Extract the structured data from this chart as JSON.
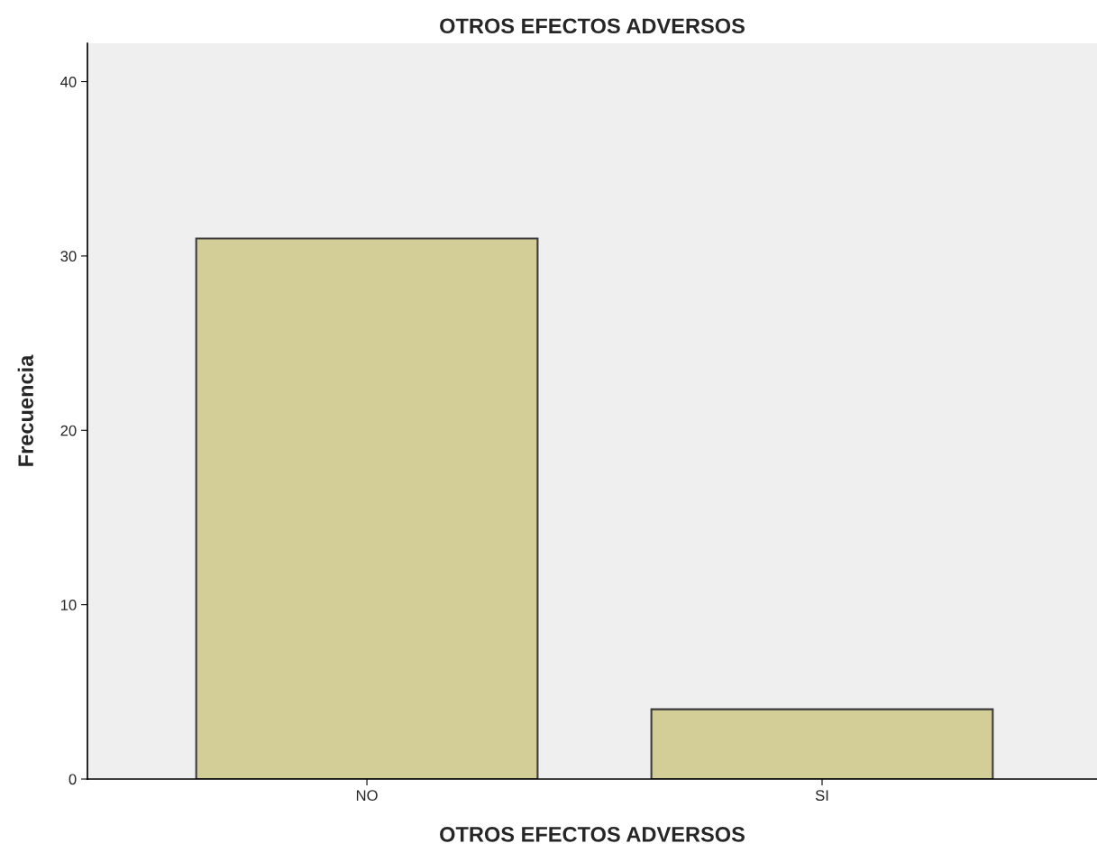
{
  "chart_data": {
    "type": "bar",
    "title": "OTROS EFECTOS ADVERSOS",
    "xlabel": "OTROS EFECTOS ADVERSOS",
    "ylabel": "Frecuencia",
    "categories": [
      "NO",
      "SI"
    ],
    "values": [
      31,
      4
    ],
    "color": "#d3cd98",
    "ylim": [
      0,
      42.2
    ],
    "yticks": [
      0,
      10,
      20,
      30,
      40
    ],
    "grid": false,
    "legend": false
  }
}
